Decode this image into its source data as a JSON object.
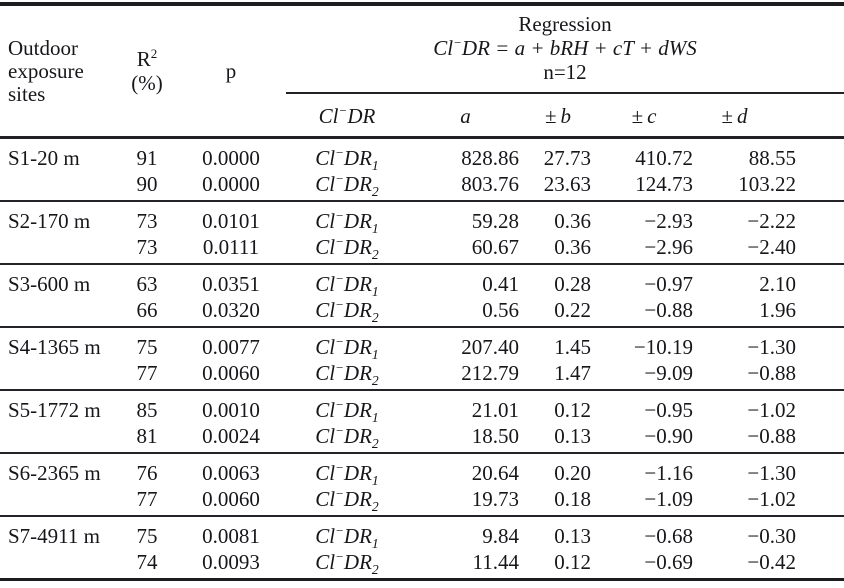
{
  "meta": {
    "background_color": "#ffffff",
    "text_color": "#17171b",
    "rule_color": "#1d1d20"
  },
  "table": {
    "header": {
      "sites_label": "Outdoor\nexposure\nsites",
      "r2": {
        "base": "R",
        "sup": "2",
        "unit": "(%)"
      },
      "p_label": "p",
      "regression": {
        "title": "Regression",
        "formula_cl": "Cl",
        "formula_minus": "−",
        "formula_rest": "DR = a + bRH + cT + dWS",
        "n_label": "n=12"
      },
      "sub_columns": {
        "cldr": {
          "cl": "Cl",
          "minus": "−",
          "dr": "DR"
        },
        "a": "a",
        "b_sign": "±",
        "b_var": "b",
        "c_sign": "±",
        "c_var": "c",
        "d_sign": "±",
        "d_var": "d"
      }
    },
    "cldr_label": {
      "cl": "Cl",
      "minus": "−",
      "dr": "DR"
    },
    "groups": [
      {
        "site": "S1-20 m",
        "rows": [
          {
            "r2": "91",
            "p": "0.0000",
            "dr_sub": "1",
            "a": "828.86",
            "b": "27.73",
            "c": "410.72",
            "d": "88.55"
          },
          {
            "r2": "90",
            "p": "0.0000",
            "dr_sub": "2",
            "a": "803.76",
            "b": "23.63",
            "c": "124.73",
            "d": "103.22"
          }
        ]
      },
      {
        "site": "S2-170 m",
        "rows": [
          {
            "r2": "73",
            "p": "0.0101",
            "dr_sub": "1",
            "a": "59.28",
            "b": "0.36",
            "c": "−2.93",
            "d": "−2.22"
          },
          {
            "r2": "73",
            "p": "0.0111",
            "dr_sub": "2",
            "a": "60.67",
            "b": "0.36",
            "c": "−2.96",
            "d": "−2.40"
          }
        ]
      },
      {
        "site": "S3-600 m",
        "rows": [
          {
            "r2": "63",
            "p": "0.0351",
            "dr_sub": "1",
            "a": "0.41",
            "b": "0.28",
            "c": "−0.97",
            "d": "2.10"
          },
          {
            "r2": "66",
            "p": "0.0320",
            "dr_sub": "2",
            "a": "0.56",
            "b": "0.22",
            "c": "−0.88",
            "d": "1.96"
          }
        ]
      },
      {
        "site": "S4-1365 m",
        "rows": [
          {
            "r2": "75",
            "p": "0.0077",
            "dr_sub": "1",
            "a": "207.40",
            "b": "1.45",
            "c": "−10.19",
            "d": "−1.30"
          },
          {
            "r2": "77",
            "p": "0.0060",
            "dr_sub": "2",
            "a": "212.79",
            "b": "1.47",
            "c": "−9.09",
            "d": "−0.88"
          }
        ]
      },
      {
        "site": "S5-1772 m",
        "rows": [
          {
            "r2": "85",
            "p": "0.0010",
            "dr_sub": "1",
            "a": "21.01",
            "b": "0.12",
            "c": "−0.95",
            "d": "−1.02"
          },
          {
            "r2": "81",
            "p": "0.0024",
            "dr_sub": "2",
            "a": "18.50",
            "b": "0.13",
            "c": "−0.90",
            "d": "−0.88"
          }
        ]
      },
      {
        "site": "S6-2365 m",
        "rows": [
          {
            "r2": "76",
            "p": "0.0063",
            "dr_sub": "1",
            "a": "20.64",
            "b": "0.20",
            "c": "−1.16",
            "d": "−1.30"
          },
          {
            "r2": "77",
            "p": "0.0060",
            "dr_sub": "2",
            "a": "19.73",
            "b": "0.18",
            "c": "−1.09",
            "d": "−1.02"
          }
        ]
      },
      {
        "site": "S7-4911 m",
        "rows": [
          {
            "r2": "75",
            "p": "0.0081",
            "dr_sub": "1",
            "a": "9.84",
            "b": "0.13",
            "c": "−0.68",
            "d": "−0.30"
          },
          {
            "r2": "74",
            "p": "0.0093",
            "dr_sub": "2",
            "a": "11.44",
            "b": "0.12",
            "c": "−0.69",
            "d": "−0.42"
          }
        ]
      }
    ]
  }
}
